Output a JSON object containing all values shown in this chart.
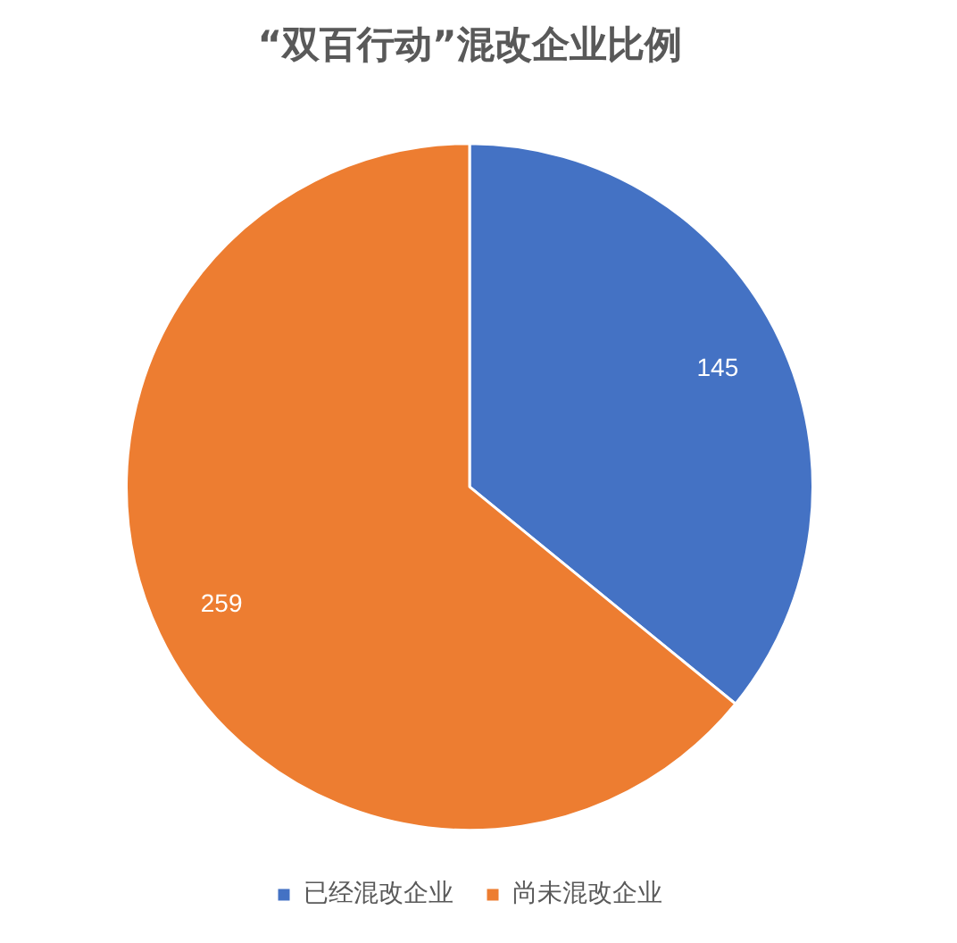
{
  "chart_data": {
    "type": "pie",
    "title": "“双百行动”混改企业比例",
    "categories": [
      "已经混改企业",
      "尚未混改企业"
    ],
    "values": [
      145,
      259
    ],
    "colors": [
      "#4472c4",
      "#ed7d31"
    ],
    "data_labels": true,
    "legend": "bottom"
  }
}
